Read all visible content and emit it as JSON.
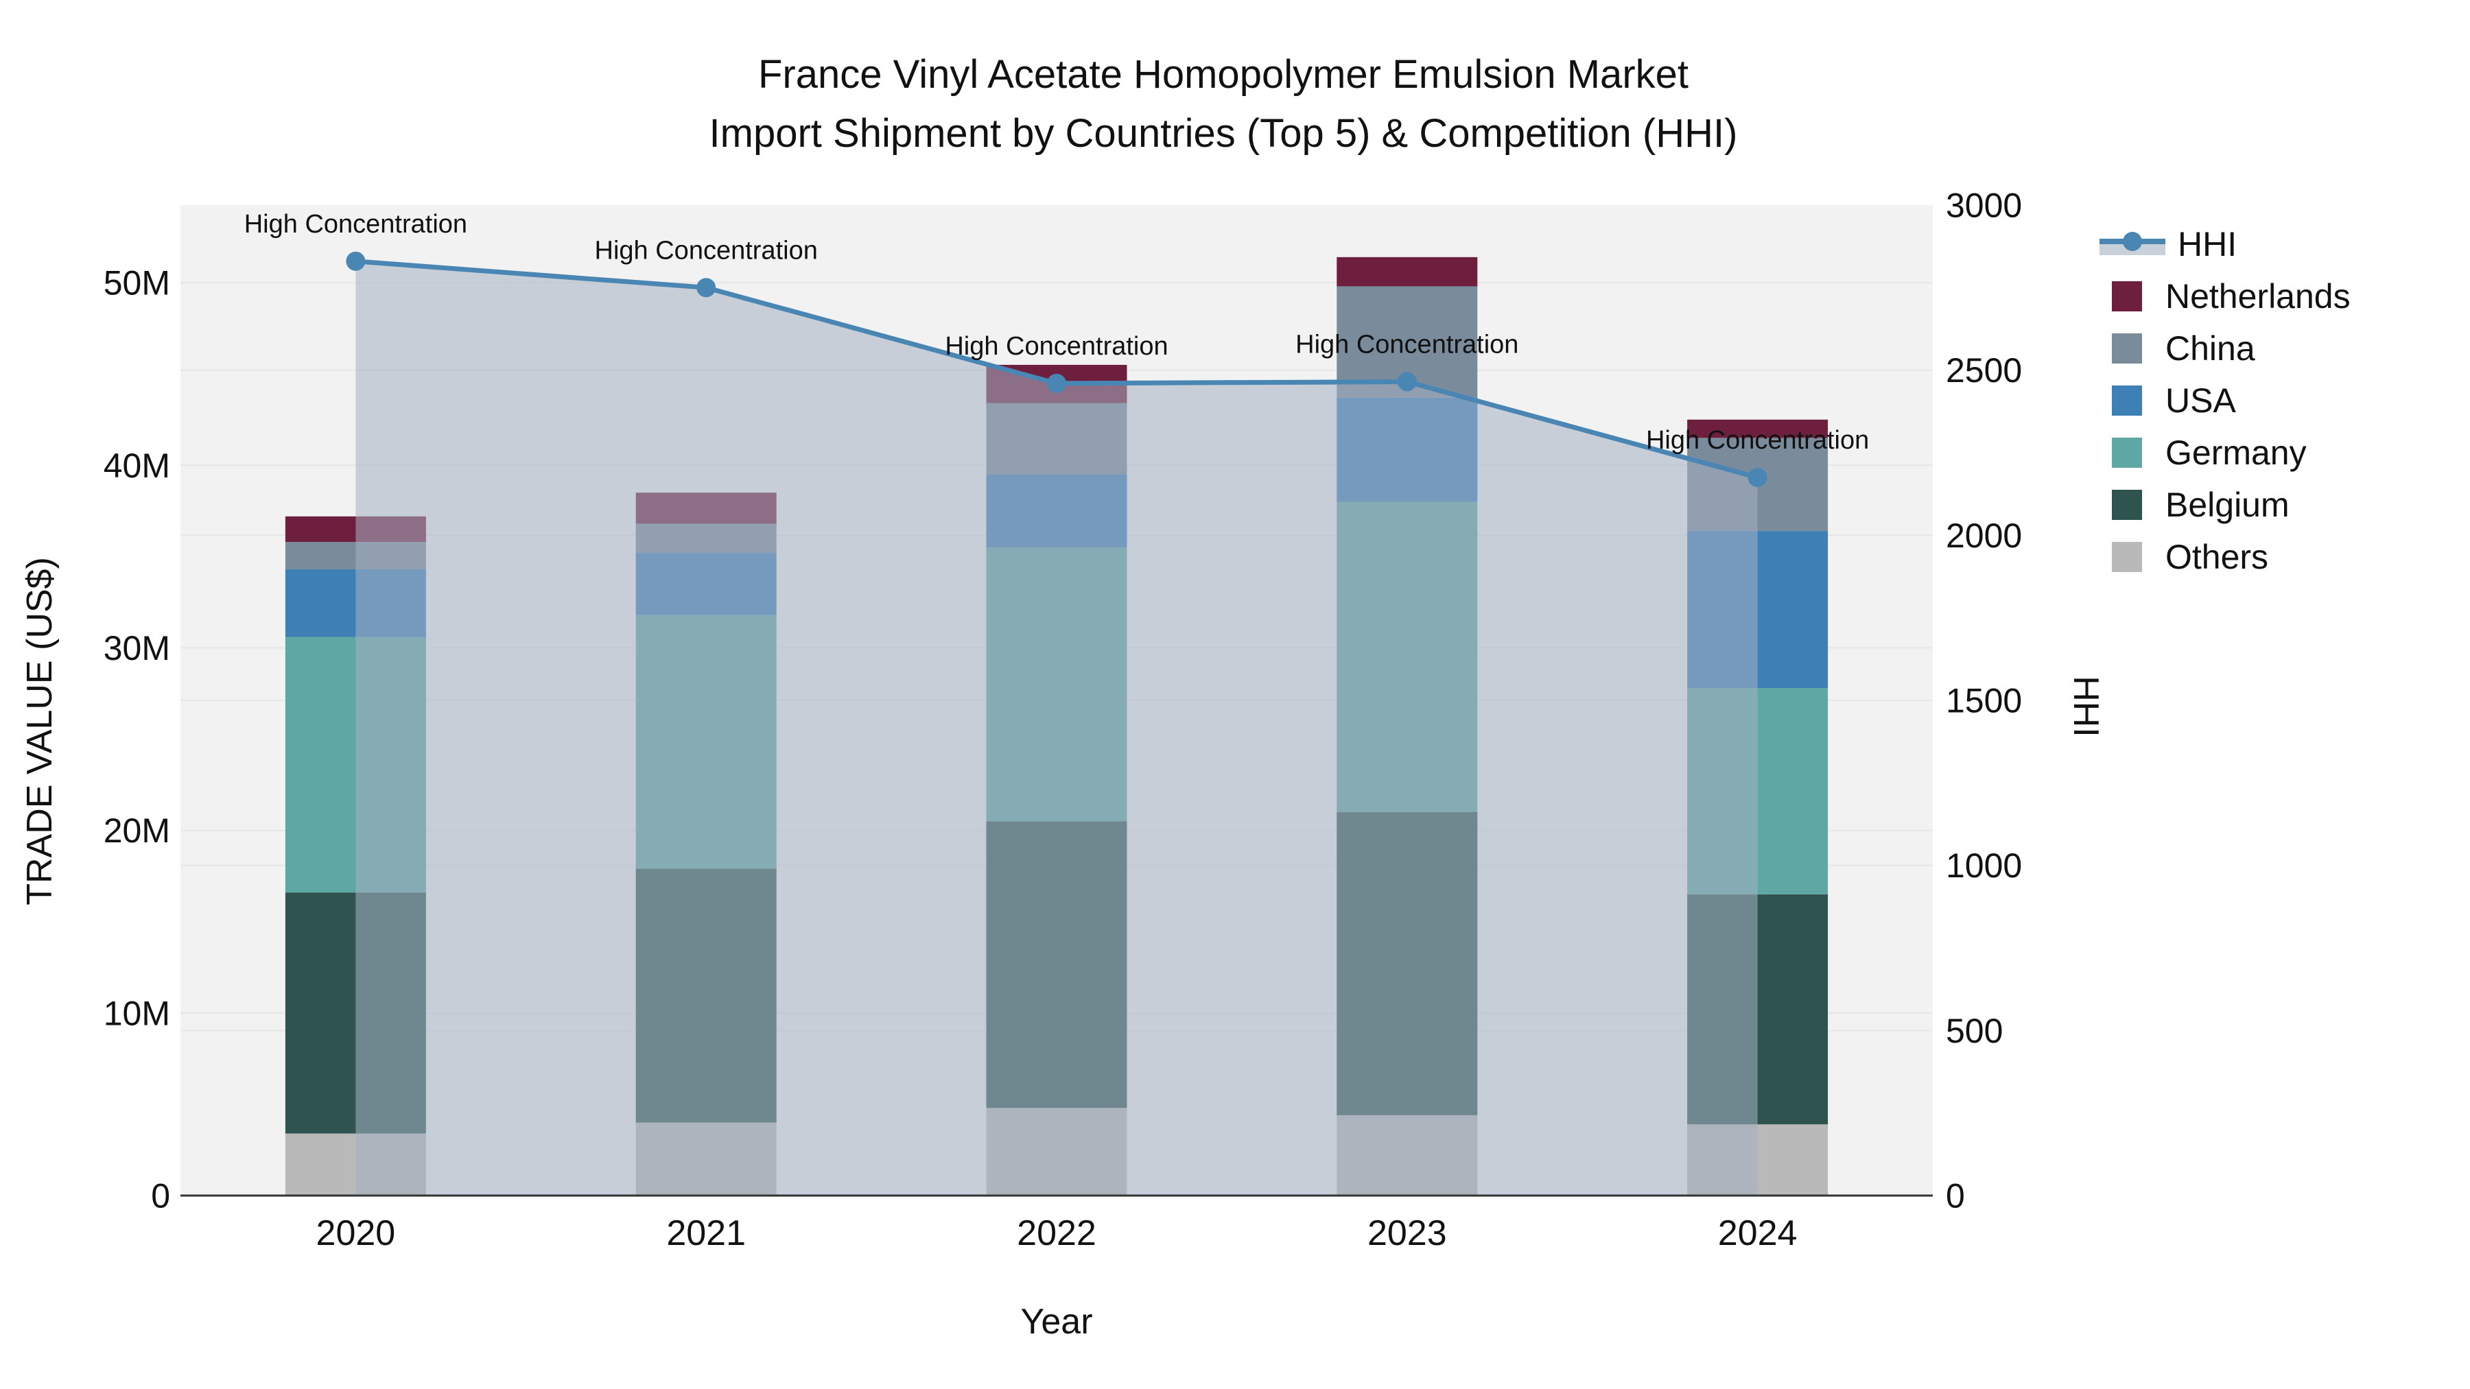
{
  "chart": {
    "title_line1": "France Vinyl Acetate Homopolymer Emulsion Market",
    "title_line2": "Import Shipment by Countries (Top 5) & Competition (HHI)",
    "x_axis_title": "Year",
    "y_left_axis_title": "TRADE VALUE (US$)",
    "y_right_axis_title": "HHI"
  },
  "chart_data": {
    "type": "bar",
    "subtype": "stacked-bars-with-line-overlay",
    "title": "France Vinyl Acetate Homopolymer Emulsion Market Import Shipment by Countries (Top 5) & Competition (HHI)",
    "xlabel": "Year",
    "ylabel_left": "TRADE VALUE (US$)",
    "ylabel_right": "HHI",
    "categories": [
      "2020",
      "2021",
      "2022",
      "2023",
      "2024"
    ],
    "unit": "US$ millions",
    "stack_order_bottom_to_top": [
      "Others",
      "Belgium",
      "Germany",
      "USA",
      "China",
      "Netherlands"
    ],
    "series": [
      {
        "name": "Netherlands",
        "color": "#6F1F3E",
        "values": [
          1.4,
          1.7,
          2.1,
          1.6,
          1.0
        ]
      },
      {
        "name": "China",
        "color": "#7A8B9C",
        "values": [
          1.5,
          1.6,
          3.9,
          6.1,
          5.1
        ]
      },
      {
        "name": "USA",
        "color": "#3E7FB5",
        "values": [
          3.7,
          3.4,
          4.0,
          5.7,
          8.6
        ]
      },
      {
        "name": "Germany",
        "color": "#5FA7A4",
        "values": [
          14.0,
          13.9,
          15.0,
          17.0,
          11.3
        ]
      },
      {
        "name": "Belgium",
        "color": "#2F544F",
        "values": [
          13.2,
          13.9,
          15.7,
          16.6,
          12.6
        ]
      },
      {
        "name": "Others",
        "color": "#B9B9B9",
        "values": [
          3.4,
          4.0,
          4.8,
          4.4,
          3.9
        ]
      }
    ],
    "bar_totals_m": [
      37.2,
      38.5,
      45.5,
      51.4,
      42.5
    ],
    "line_series": {
      "name": "HHI",
      "axis": "right",
      "color": "#4A86B4",
      "fill_to_zero_color": "rgba(164,177,194,0.55)",
      "values": [
        2830,
        2750,
        2460,
        2465,
        2175
      ]
    },
    "annotations": [
      {
        "text": "High Concentration",
        "category": "2020"
      },
      {
        "text": "High Concentration",
        "category": "2021"
      },
      {
        "text": "High Concentration",
        "category": "2022"
      },
      {
        "text": "High Concentration",
        "category": "2023"
      },
      {
        "text": "High Concentration",
        "category": "2024"
      }
    ],
    "y_left": {
      "ticks": [
        "0",
        "10M",
        "20M",
        "30M",
        "40M",
        "50M"
      ],
      "tick_values_m": [
        0,
        10,
        20,
        30,
        40,
        50
      ],
      "max_m": 54.25
    },
    "y_right": {
      "ticks": [
        "0",
        "500",
        "1000",
        "1500",
        "2000",
        "2500",
        "3000"
      ],
      "tick_values": [
        0,
        500,
        1000,
        1500,
        2000,
        2500,
        3000
      ],
      "max": 3000
    },
    "grid": true,
    "plot_background": "#F2F2F2",
    "gridline_color": "#E6E6E6",
    "legend_position": "right"
  },
  "legend": {
    "items": [
      {
        "label": "HHI",
        "type": "line",
        "color": "#4A86B4",
        "band": "#C8D0DA"
      },
      {
        "label": "Netherlands",
        "type": "box",
        "color": "#6F1F3E"
      },
      {
        "label": "China",
        "type": "box",
        "color": "#7A8B9C"
      },
      {
        "label": "USA",
        "type": "box",
        "color": "#3E7FB5"
      },
      {
        "label": "Germany",
        "type": "box",
        "color": "#5FA7A4"
      },
      {
        "label": "Belgium",
        "type": "box",
        "color": "#2F544F"
      },
      {
        "label": "Others",
        "type": "box",
        "color": "#B9B9B9"
      }
    ]
  }
}
